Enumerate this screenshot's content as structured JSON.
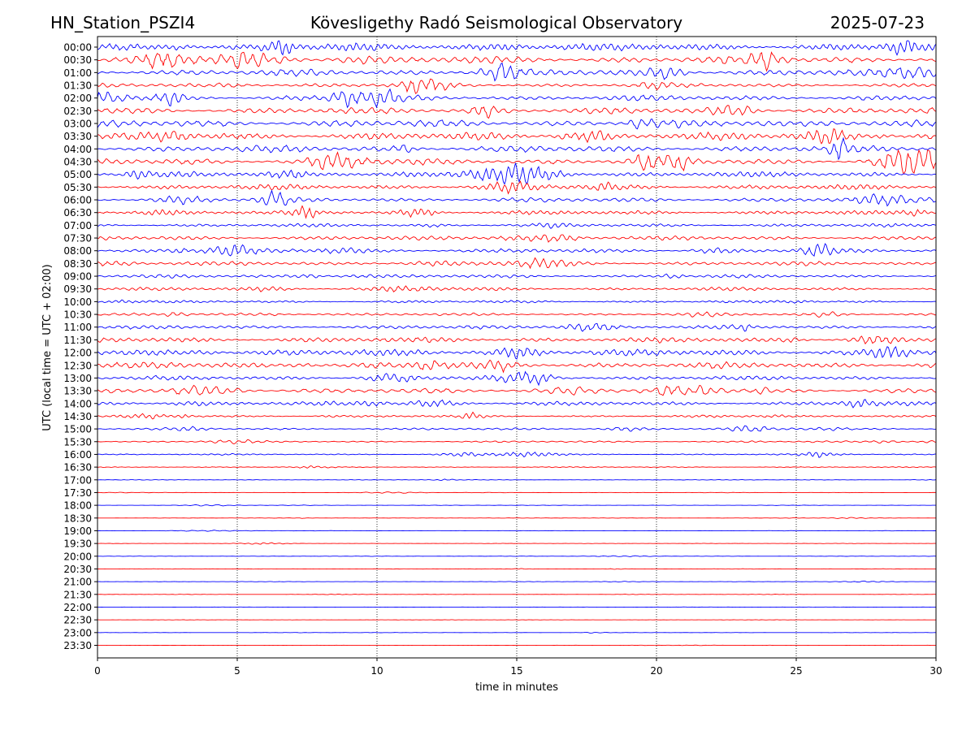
{
  "header": {
    "station": "HN_Station_PSZI4",
    "observatory": "Kövesligethy Radó Seismological Observatory",
    "date": "2025-07-23"
  },
  "chart_data": {
    "type": "line",
    "title": "Kövesligethy Radó Seismological Observatory",
    "xlabel": "time in minutes",
    "ylabel": "UTC (local time = UTC + 02:00)",
    "xlim": [
      0,
      30
    ],
    "x_ticks": [
      "0",
      "5",
      "10",
      "15",
      "20",
      "25",
      "30"
    ],
    "grid": "vertical dotted lines at each x tick",
    "row_labels": [
      "00:00",
      "00:30",
      "01:00",
      "01:30",
      "02:00",
      "02:30",
      "03:00",
      "03:30",
      "04:00",
      "04:30",
      "05:00",
      "05:30",
      "06:00",
      "06:30",
      "07:00",
      "07:30",
      "08:00",
      "08:30",
      "09:00",
      "09:30",
      "10:00",
      "10:30",
      "11:00",
      "11:30",
      "12:00",
      "12:30",
      "13:00",
      "13:30",
      "14:00",
      "14:30",
      "15:00",
      "15:30",
      "16:00",
      "16:30",
      "17:00",
      "17:30",
      "18:00",
      "18:30",
      "19:00",
      "19:30",
      "20:00",
      "20:30",
      "21:00",
      "21:30",
      "22:00",
      "22:30",
      "23:00",
      "23:30"
    ],
    "trace_colors": [
      "#0000ff",
      "#ff0000"
    ],
    "relative_amplitude": [
      1.0,
      1.0,
      0.9,
      0.55,
      0.75,
      0.85,
      1.0,
      1.0,
      0.9,
      0.9,
      0.75,
      0.7,
      0.6,
      0.55,
      0.45,
      0.55,
      0.55,
      0.55,
      0.45,
      0.45,
      0.35,
      0.35,
      0.5,
      0.7,
      0.9,
      0.85,
      0.6,
      0.65,
      0.55,
      0.3,
      0.3,
      0.22,
      0.2,
      0.12,
      0.07,
      0.06,
      0.05,
      0.05,
      0.04,
      0.04,
      0.05,
      0.05,
      0.05,
      0.04,
      0.04,
      0.04,
      0.04,
      0.03
    ]
  }
}
